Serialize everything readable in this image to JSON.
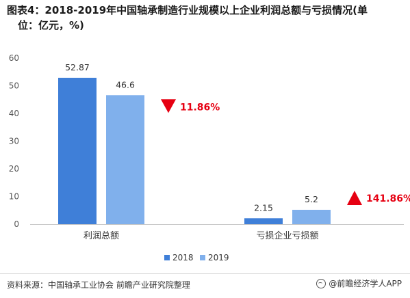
{
  "title_line1": "图表4：2018-2019年中国轴承制造行业规模以上企业利润总额与亏损情况(单",
  "title_line2": "位：亿元，%)",
  "chart_data": {
    "type": "bar",
    "categories": [
      "利润总额",
      "亏损企业亏损额"
    ],
    "series": [
      {
        "name": "2018",
        "values": [
          52.87,
          2.15
        ],
        "labels": [
          "52.87",
          "2.15"
        ],
        "color": "#3f7fd8"
      },
      {
        "name": "2019",
        "values": [
          46.6,
          5.2
        ],
        "labels": [
          "46.6",
          "5.2"
        ],
        "color": "#80b0ec"
      }
    ],
    "ylim": [
      0,
      60
    ],
    "yticks": [
      "0",
      "10",
      "20",
      "30",
      "40",
      "50",
      "60"
    ],
    "grid": false,
    "legend_position": "bottom-center",
    "annotations": [
      {
        "category": "利润总额",
        "text": "11.86%",
        "direction": "down"
      },
      {
        "category": "亏损企业亏损额",
        "text": "141.86%",
        "direction": "up"
      }
    ],
    "annotation_color": "#e60012"
  },
  "footer": {
    "source": "资料来源：中国轴承工业协会 前瞻产业研究院整理",
    "brand": "@前瞻经济学人APP",
    "brand_icon": "qianzhan-logo-icon"
  }
}
